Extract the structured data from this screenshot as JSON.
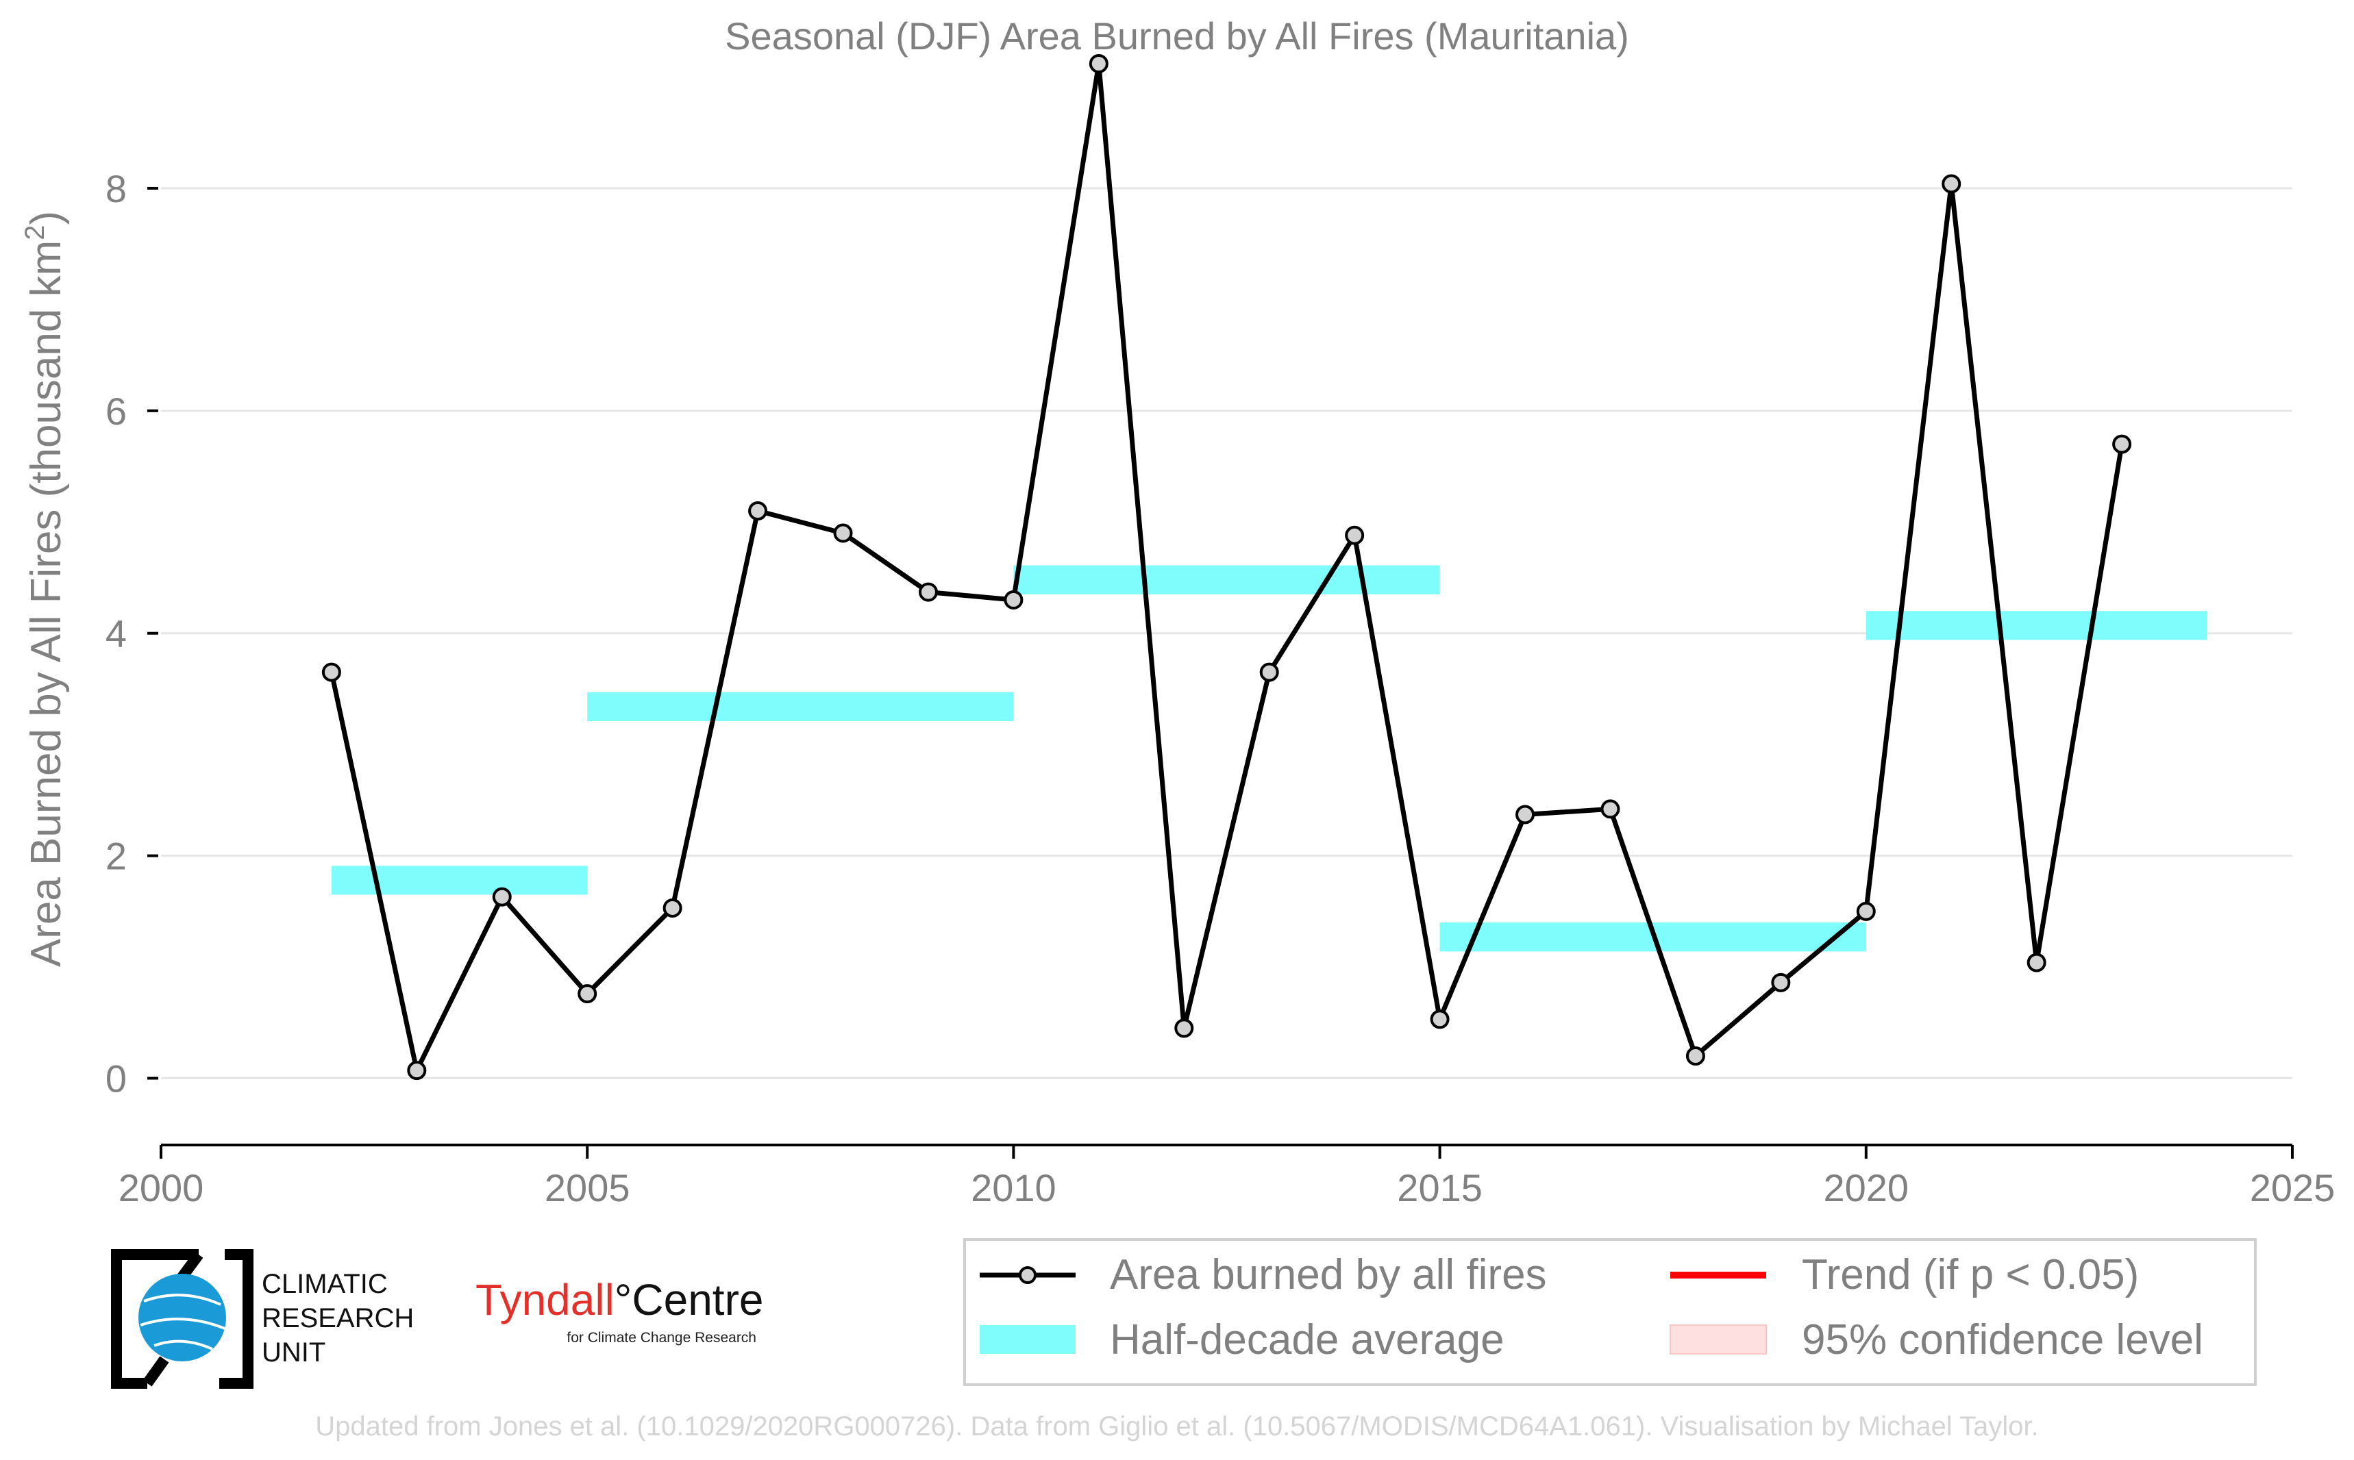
{
  "colors": {
    "line": "#000000",
    "marker_fill": "#d3d3d3",
    "half_decade": "#7ffcfc",
    "trend": "#ff0000",
    "confidence": "#ffe0e0",
    "grid": "#e6e6e6",
    "text": "#808080"
  },
  "chart_data": {
    "type": "line",
    "title": "Seasonal (DJF) Area Burned by All Fires (Mauritania)",
    "ylabel_main": "Area Burned by All Fires (thousand km",
    "ylabel_sup": "2",
    "ylabel_end": ")",
    "xlabel": "",
    "xlim": [
      2000,
      2025
    ],
    "ylim": [
      -0.6,
      9.2
    ],
    "xticks": [
      2000,
      2005,
      2010,
      2015,
      2020,
      2025
    ],
    "yticks": [
      0,
      2,
      4,
      6,
      8
    ],
    "grid": "horizontal",
    "legend_position": "bottom-right",
    "series": [
      {
        "name": "Area burned by all fires",
        "x": [
          2002,
          2003,
          2004,
          2005,
          2006,
          2007,
          2008,
          2009,
          2010,
          2011,
          2012,
          2013,
          2014,
          2015,
          2016,
          2017,
          2018,
          2019,
          2020,
          2021,
          2022,
          2023
        ],
        "y": [
          3.65,
          0.07,
          1.63,
          0.76,
          1.53,
          5.1,
          4.9,
          4.37,
          4.3,
          9.12,
          0.45,
          3.65,
          4.88,
          0.53,
          2.37,
          2.42,
          0.2,
          0.86,
          1.5,
          8.04,
          1.04,
          5.7
        ]
      }
    ],
    "half_decade_averages": [
      {
        "x_start": 2002,
        "x_end": 2005,
        "value": 1.78
      },
      {
        "x_start": 2005,
        "x_end": 2010,
        "value": 3.34
      },
      {
        "x_start": 2010,
        "x_end": 2015,
        "value": 4.48
      },
      {
        "x_start": 2015,
        "x_end": 2020,
        "value": 1.27
      },
      {
        "x_start": 2020,
        "x_end": 2024,
        "value": 4.07
      }
    ],
    "legend": [
      {
        "label": "Area burned by all fires",
        "kind": "line-marker"
      },
      {
        "label": "Trend (if p < 0.05)",
        "kind": "red-line"
      },
      {
        "label": "Half-decade average",
        "kind": "cyan-band"
      },
      {
        "label": "95% confidence level",
        "kind": "pink-band"
      }
    ]
  },
  "logos": {
    "cru_line1": "CLIMATIC",
    "cru_line2": "RESEARCH",
    "cru_line3": "UNIT",
    "tyndall_main": "Tyndall",
    "tyndall_degree": "°",
    "tyndall_centre": "Centre",
    "tyndall_sub": "for Climate Change Research"
  },
  "footer": "Updated from Jones et al. (10.1029/2020RG000726). Data from Giglio et al. (10.5067/MODIS/MCD64A1.061). Visualisation by Michael Taylor."
}
